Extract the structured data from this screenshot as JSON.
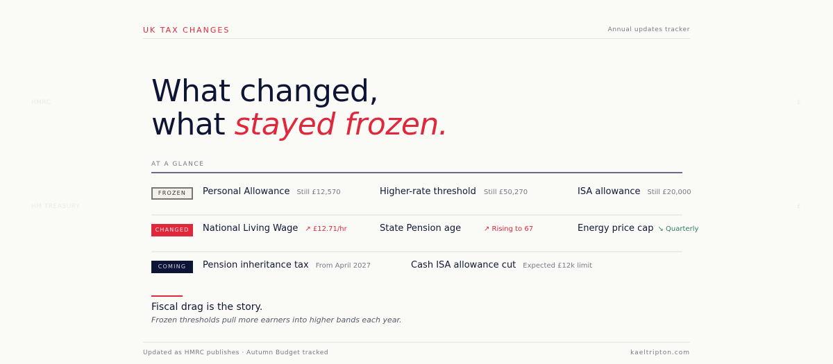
{
  "watermarks": {
    "left_top": "HMRC",
    "left_bottom": "HM TREASURY",
    "right_top": "£",
    "right_bottom": "£"
  },
  "header": {
    "brand": "UK TAX CHANGES",
    "tagline": "Annual updates tracker"
  },
  "hero": {
    "line1": "What changed,",
    "line2_plain": "what ",
    "line2_accent": "stayed frozen."
  },
  "glance": {
    "label": "AT A GLANCE"
  },
  "rows": [
    {
      "badge": "FROZEN",
      "items": [
        {
          "name": "Personal Allowance",
          "value": "Still £12,570"
        },
        {
          "name": "Higher-rate threshold",
          "value": "Still £50,270"
        },
        {
          "name": "ISA allowance",
          "value": "Still £20,000"
        }
      ]
    },
    {
      "badge": "CHANGED",
      "items": [
        {
          "name": "National Living Wage",
          "value": "↗ £12.71/hr"
        },
        {
          "name": "State Pension age",
          "value": "↗ Rising to 67"
        },
        {
          "name": "Energy price cap",
          "value": "↘ Quarterly"
        }
      ]
    },
    {
      "badge": "COMING",
      "items": [
        {
          "name": "Pension inheritance tax",
          "value": "From April 2027"
        },
        {
          "name": "Cash ISA allowance cut",
          "value": "Expected £12k limit"
        }
      ]
    }
  ],
  "story": {
    "title": "Fiscal drag is the story.",
    "subtitle": "Frozen thresholds pull more earners into higher bands each year."
  },
  "footer": {
    "left": "Updated as HMRC publishes · Autumn Budget tracked",
    "right": "kaeltripton.com"
  },
  "colors": {
    "accent": "#e0283c",
    "navy": "#0e1434",
    "teal": "#2f7f6a"
  }
}
